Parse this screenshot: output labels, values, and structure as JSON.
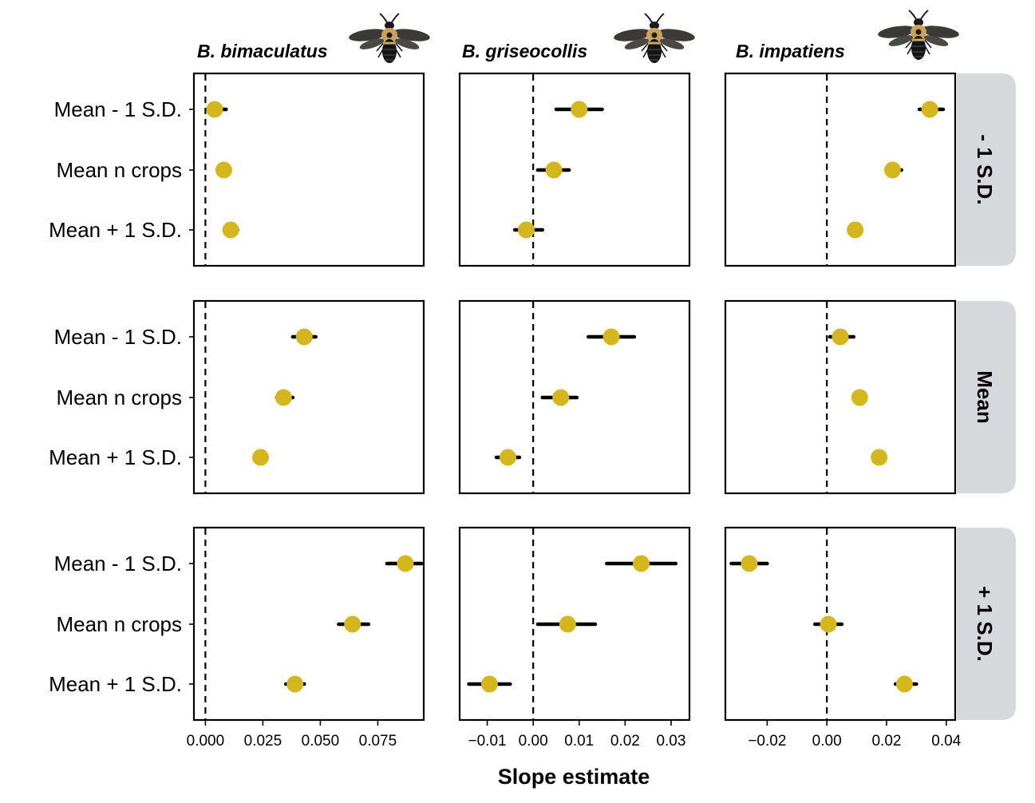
{
  "chart_data": {
    "type": "forest",
    "xlabel": "Slope estimate",
    "row_labels": [
      "Mean - 1 S.D.",
      "Mean n crops",
      "Mean + 1 S.D."
    ],
    "facet_rows": [
      "- 1 S.D.",
      "Mean",
      "+ 1 S.D."
    ],
    "point_color": "#D4B71E",
    "strip_color": "#D5D9DC",
    "reference_line": 0,
    "columns": [
      {
        "species": "B. bimaculatus",
        "xlim": [
          -0.005,
          0.095
        ],
        "xticks": [
          0,
          0.025,
          0.05,
          0.075
        ],
        "xtick_labels": [
          "0.000",
          "0.025",
          "0.050",
          "0.075"
        ],
        "panels": [
          {
            "estimates": [
              0.004,
              0.008,
              0.011
            ],
            "lower": [
              0.001,
              0.007,
              0.009
            ],
            "upper": [
              0.009,
              0.009,
              0.014
            ]
          },
          {
            "estimates": [
              0.043,
              0.034,
              0.024
            ],
            "lower": [
              0.038,
              0.031,
              0.023
            ],
            "upper": [
              0.048,
              0.038,
              0.025
            ]
          },
          {
            "estimates": [
              0.087,
              0.064,
              0.039
            ],
            "lower": [
              0.079,
              0.058,
              0.035
            ],
            "upper": [
              0.094,
              0.071,
              0.043
            ]
          }
        ]
      },
      {
        "species": "B. griseocollis",
        "xlim": [
          -0.016,
          0.034
        ],
        "xticks": [
          -0.01,
          0,
          0.01,
          0.02,
          0.03
        ],
        "xtick_labels": [
          "−0.01",
          "0.00",
          "0.01",
          "0.02",
          "0.03"
        ],
        "panels": [
          {
            "estimates": [
              0.01,
              0.0045,
              -0.0015
            ],
            "lower": [
              0.005,
              0.001,
              -0.004
            ],
            "upper": [
              0.015,
              0.0078,
              0.002
            ]
          },
          {
            "estimates": [
              0.017,
              0.006,
              -0.0055
            ],
            "lower": [
              0.012,
              0.002,
              -0.008
            ],
            "upper": [
              0.022,
              0.0095,
              -0.003
            ]
          },
          {
            "estimates": [
              0.0235,
              0.0075,
              -0.0095
            ],
            "lower": [
              0.016,
              0.001,
              -0.014
            ],
            "upper": [
              0.031,
              0.0135,
              -0.005
            ]
          }
        ]
      },
      {
        "species": "B. impatiens",
        "xlim": [
          -0.034,
          0.043
        ],
        "xticks": [
          -0.02,
          0,
          0.02,
          0.04
        ],
        "xtick_labels": [
          "−0.02",
          "0.00",
          "0.02",
          "0.04"
        ],
        "panels": [
          {
            "estimates": [
              0.0345,
              0.022,
              0.0095
            ],
            "lower": [
              0.031,
              0.02,
              0.008
            ],
            "upper": [
              0.039,
              0.025,
              0.011
            ]
          },
          {
            "estimates": [
              0.0045,
              0.011,
              0.0175
            ],
            "lower": [
              0.001,
              0.01,
              0.017
            ],
            "upper": [
              0.009,
              0.013,
              0.018
            ]
          },
          {
            "estimates": [
              -0.026,
              0.0005,
              0.026
            ],
            "lower": [
              -0.032,
              -0.004,
              0.023
            ],
            "upper": [
              -0.02,
              0.005,
              0.03
            ]
          }
        ]
      }
    ]
  }
}
